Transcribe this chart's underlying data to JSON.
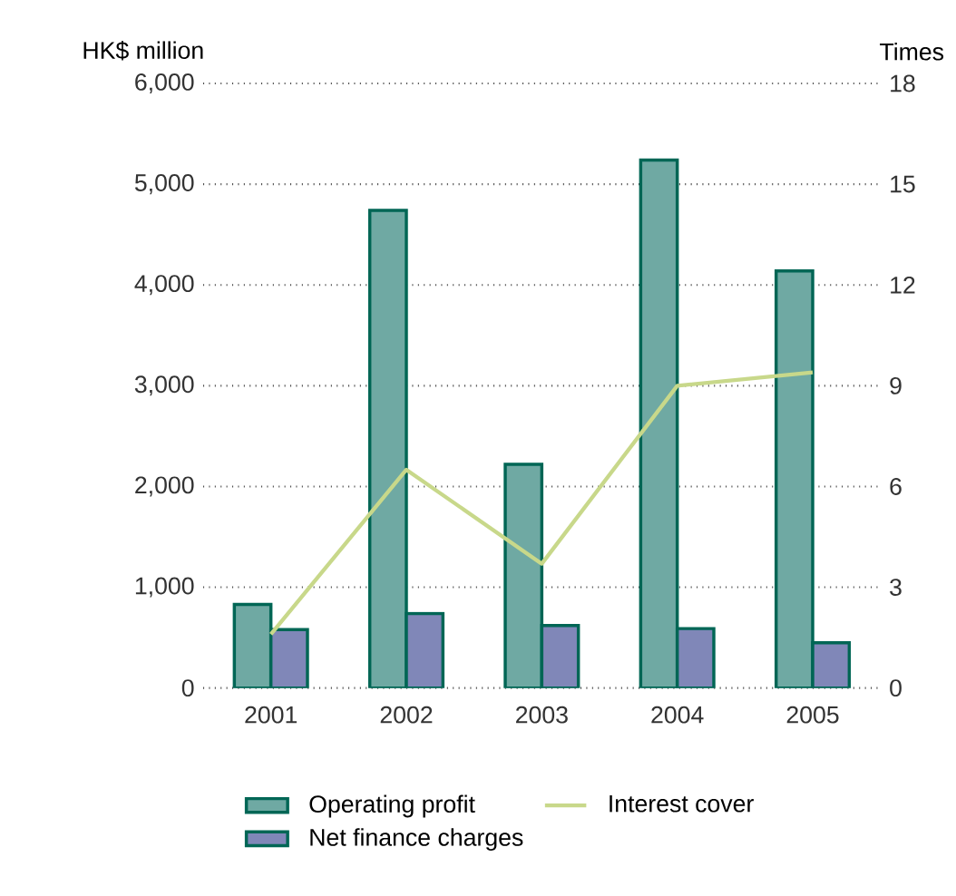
{
  "chart_data": {
    "type": "bar",
    "ylabel": "HK$ million",
    "y2label": "Times",
    "categories": [
      "2001",
      "2002",
      "2003",
      "2004",
      "2005"
    ],
    "series": [
      {
        "name": "Operating profit",
        "color": "#6fa9a3",
        "values": [
          830,
          4740,
          2220,
          5240,
          4140
        ]
      },
      {
        "name": "Net finance charges",
        "color": "#8087b8",
        "values": [
          580,
          740,
          620,
          590,
          450
        ]
      },
      {
        "name": "Interest cover",
        "type": "line",
        "axis": "y2",
        "color": "#c8d88a",
        "values": [
          1.6,
          6.5,
          3.7,
          9.0,
          9.4
        ]
      }
    ],
    "ylim": [
      0,
      6000
    ],
    "yticks": [
      {
        "value": 0,
        "label": "0"
      },
      {
        "value": 1000,
        "label": "1,000"
      },
      {
        "value": 2000,
        "label": "2,000"
      },
      {
        "value": 3000,
        "label": "3,000"
      },
      {
        "value": 4000,
        "label": "4,000"
      },
      {
        "value": 5000,
        "label": "5,000"
      },
      {
        "value": 6000,
        "label": "6,000"
      }
    ],
    "y2lim": [
      0,
      18
    ],
    "y2ticks": [
      0,
      3,
      6,
      9,
      12,
      15,
      18
    ],
    "grid": "y",
    "legend": "bottom"
  }
}
